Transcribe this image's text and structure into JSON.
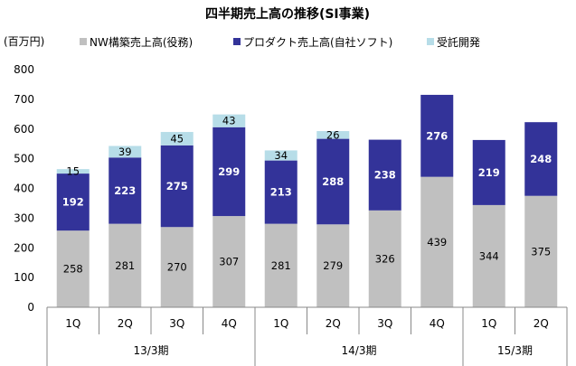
{
  "chart_data": {
    "type": "bar",
    "stacked": true,
    "title": "四半期売上高の推移(SI事業)",
    "ylabel": "(百万円)",
    "ylim": [
      0,
      800
    ],
    "yticks": [
      0,
      100,
      200,
      300,
      400,
      500,
      600,
      700,
      800
    ],
    "categories": [
      "1Q",
      "2Q",
      "3Q",
      "4Q",
      "1Q",
      "2Q",
      "3Q",
      "4Q",
      "1Q",
      "2Q"
    ],
    "groups": [
      {
        "label": "13/3期",
        "count": 4
      },
      {
        "label": "14/3期",
        "count": 4
      },
      {
        "label": "15/3期",
        "count": 2
      }
    ],
    "legend_position": "top",
    "grid": false,
    "series": [
      {
        "name": "NW構築売上高(役務)",
        "color": "#c0c0c0",
        "label_color": "#000000",
        "values": [
          258,
          281,
          270,
          307,
          281,
          279,
          326,
          439,
          344,
          375
        ]
      },
      {
        "name": "プロダクト売上高(自社ソフト)",
        "color": "#333399",
        "label_color": "#ffffff",
        "values": [
          192,
          223,
          275,
          299,
          213,
          288,
          238,
          276,
          219,
          248
        ]
      },
      {
        "name": "受託開発",
        "color": "#b7dde8",
        "label_color": "#000000",
        "values": [
          15,
          39,
          45,
          43,
          34,
          26,
          null,
          null,
          null,
          null
        ]
      }
    ]
  }
}
